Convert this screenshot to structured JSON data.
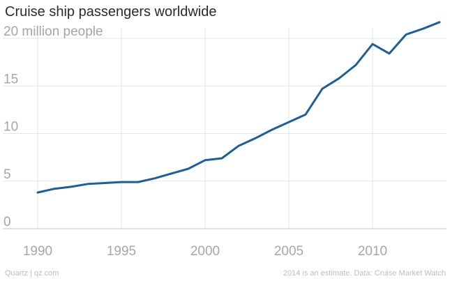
{
  "title": "Cruise ship passengers worldwide",
  "footer": {
    "source_left": "Quartz | qz.com",
    "source_right": "2014 is an estimate. Data: Cruise Market Watch"
  },
  "colors": {
    "line": "#1f5f95",
    "grid": "#e6e6e6",
    "axis": "#cfcfcf",
    "tick_text": "#a6a6a6"
  },
  "chart_data": {
    "type": "line",
    "title": "Cruise ship passengers worldwide",
    "xlabel": "",
    "ylabel": "",
    "xlim": [
      1989,
      2014.5
    ],
    "ylim": [
      0,
      22
    ],
    "grid": true,
    "x_ticks": [
      1990,
      1995,
      2000,
      2005,
      2010
    ],
    "x_tick_labels": [
      "1990",
      "1995",
      "2000",
      "2005",
      "2010"
    ],
    "y_ticks": [
      0,
      5,
      10,
      15,
      20
    ],
    "y_tick_labels": [
      "0",
      "5",
      "10",
      "15",
      "20 million people"
    ],
    "series": [
      {
        "x": [
          1990,
          1991,
          1992,
          1993,
          1994,
          1995,
          1996,
          1997,
          1998,
          1999,
          2000,
          2001,
          2002,
          2003,
          2004,
          2005,
          2006,
          2007,
          2008,
          2009,
          2010,
          2011,
          2012,
          2013,
          2014
        ],
        "values": [
          3.8,
          4.2,
          4.4,
          4.7,
          4.8,
          4.9,
          4.9,
          5.3,
          5.8,
          6.3,
          7.2,
          7.4,
          8.7,
          9.5,
          10.4,
          11.2,
          12.0,
          14.7,
          15.8,
          17.2,
          19.4,
          18.4,
          20.4,
          21.0,
          21.7
        ]
      }
    ]
  }
}
